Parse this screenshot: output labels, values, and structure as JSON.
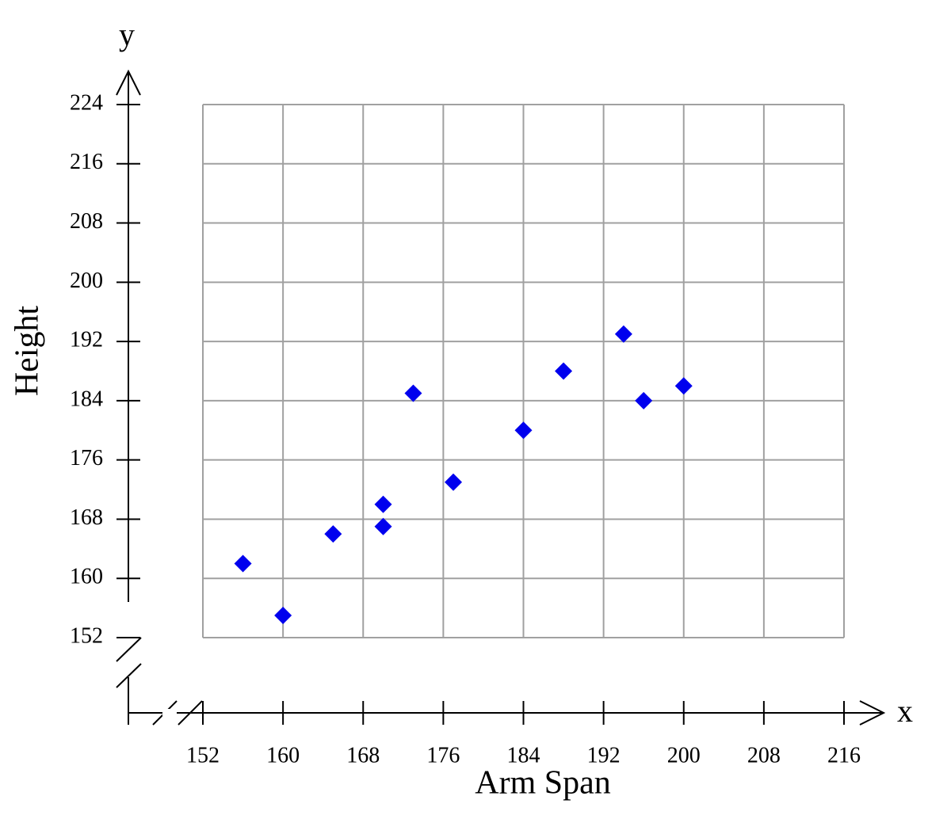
{
  "chart_data": {
    "type": "scatter",
    "x_label": "Arm Span",
    "y_label": "Height",
    "x_axis_name": "x",
    "y_axis_name": "y",
    "color": "#0000ee",
    "x": [
      156,
      160,
      165,
      170,
      170,
      173,
      177,
      184,
      188,
      194,
      196,
      200
    ],
    "values": [
      162,
      155,
      166,
      170,
      167,
      185,
      173,
      180,
      188,
      193,
      184,
      186
    ],
    "xlim": [
      152,
      216
    ],
    "ylim": [
      152,
      224
    ],
    "xticks": [
      152,
      160,
      168,
      176,
      184,
      192,
      200,
      208,
      216
    ],
    "yticks": [
      152,
      160,
      168,
      176,
      184,
      192,
      200,
      208,
      216,
      224
    ],
    "grid": true
  }
}
